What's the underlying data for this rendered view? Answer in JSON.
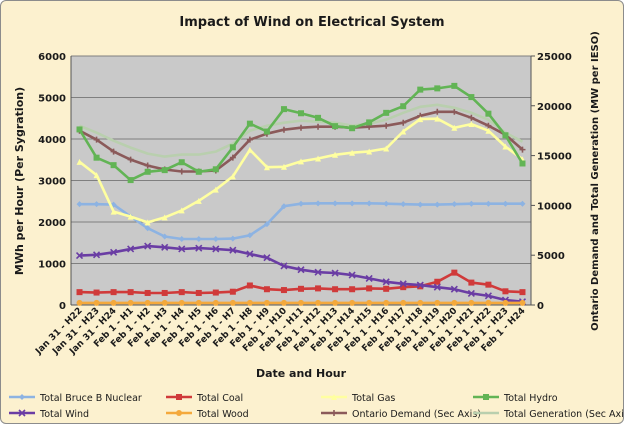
{
  "chart_data": {
    "type": "line",
    "title": "Impact of Wind on Electrical System",
    "xlabel": "Date and Hour",
    "ylabel": "MWh per Hour (Per Sygration)",
    "y2label": "Ontario Demand and Total Generation (MW per IESO)",
    "ylim": [
      0,
      6000
    ],
    "y2lim": [
      0,
      25000
    ],
    "yticks": [
      "0",
      "1000",
      "2000",
      "3000",
      "4000",
      "5000",
      "6000"
    ],
    "y2ticks": [
      "0",
      "5000",
      "10000",
      "15000",
      "20000",
      "25000"
    ],
    "grid": true,
    "legend_position": "bottom",
    "x_ticks": [
      "Jan 31 - H22",
      "Jan 31 - H23",
      "Jan 31 - H24",
      "Feb 1 - H1",
      "Feb 1 - H2",
      "Feb 1 - H3",
      "Feb 1 - H4",
      "Feb 1 - H5",
      "Feb 1 - H6",
      "Feb 1 - H7",
      "Feb 1 - H8",
      "Feb 1 - H9",
      "Feb 1 - H10",
      "Feb 1 - H11",
      "Feb 1 - H12",
      "Feb 1 - H13",
      "Feb 1 - H14",
      "Feb 1 - H15",
      "Feb 1 - H16",
      "Feb 1 - H17",
      "Feb 1 - H18",
      "Feb 1 - H19",
      "Feb 1 - H20",
      "Feb 1 - H21",
      "Feb 1 - H22",
      "Feb 1 - H23",
      "Feb 1 - H24"
    ],
    "series": [
      {
        "name": "Total Bruce B Nuclear",
        "color": "#8db3e2",
        "marker": "diamond",
        "axis": "primary",
        "values": [
          2430,
          2430,
          2420,
          2130,
          1850,
          1650,
          1590,
          1590,
          1590,
          1600,
          1680,
          1950,
          2380,
          2440,
          2450,
          2450,
          2450,
          2450,
          2440,
          2430,
          2420,
          2420,
          2430,
          2440,
          2440,
          2440,
          2440
        ]
      },
      {
        "name": "Total Coal",
        "color": "#d03a3a",
        "marker": "square",
        "axis": "primary",
        "values": [
          310,
          300,
          310,
          310,
          290,
          290,
          310,
          290,
          300,
          320,
          470,
          380,
          360,
          390,
          400,
          380,
          380,
          400,
          390,
          430,
          450,
          560,
          780,
          540,
          490,
          330,
          310
        ]
      },
      {
        "name": "Total Gas",
        "color": "#ffffa0",
        "marker": "triangle",
        "axis": "primary",
        "values": [
          3450,
          3130,
          2250,
          2130,
          1990,
          2110,
          2280,
          2510,
          2780,
          3100,
          3740,
          3320,
          3330,
          3460,
          3530,
          3620,
          3670,
          3700,
          3770,
          4180,
          4480,
          4490,
          4270,
          4360,
          4200,
          3820,
          3510
        ]
      },
      {
        "name": "Total Hydro",
        "color": "#62b455",
        "marker": "square",
        "axis": "primary",
        "values": [
          4230,
          3550,
          3370,
          3010,
          3210,
          3250,
          3440,
          3210,
          3270,
          3800,
          4370,
          4180,
          4720,
          4620,
          4510,
          4310,
          4260,
          4400,
          4630,
          4790,
          5190,
          5220,
          5280,
          5010,
          4610,
          4090,
          3410
        ]
      },
      {
        "name": "Total Wind",
        "color": "#6a3da4",
        "marker": "x",
        "axis": "primary",
        "values": [
          1190,
          1210,
          1270,
          1350,
          1420,
          1390,
          1350,
          1370,
          1350,
          1320,
          1230,
          1140,
          940,
          850,
          790,
          770,
          720,
          640,
          560,
          510,
          480,
          430,
          380,
          280,
          220,
          120,
          80
        ]
      },
      {
        "name": "Total Wood",
        "color": "#f4a93c",
        "marker": "circle",
        "axis": "primary",
        "values": [
          50,
          50,
          50,
          50,
          50,
          50,
          50,
          50,
          50,
          50,
          50,
          50,
          50,
          50,
          50,
          50,
          50,
          50,
          50,
          50,
          50,
          50,
          50,
          50,
          50,
          50,
          50
        ]
      },
      {
        "name": "Ontario Demand (Sec Axis)",
        "color": "#8b5a5a",
        "marker": "plus",
        "axis": "secondary",
        "values": [
          17500,
          16600,
          15400,
          14600,
          14000,
          13600,
          13400,
          13400,
          13500,
          14800,
          16600,
          17200,
          17600,
          17800,
          17900,
          17900,
          17800,
          17900,
          18000,
          18300,
          19000,
          19400,
          19400,
          18800,
          18000,
          17100,
          15600
        ]
      },
      {
        "name": "Total Generation (Sec Axis)",
        "color": "#b9cfae",
        "marker": "none",
        "axis": "secondary",
        "values": [
          18000,
          17300,
          16500,
          15800,
          15200,
          14900,
          15100,
          15100,
          15400,
          16200,
          17500,
          18000,
          18300,
          18500,
          18400,
          18300,
          18000,
          18200,
          18600,
          19300,
          19900,
          20100,
          19800,
          19300,
          18600,
          17300,
          16400
        ]
      }
    ]
  }
}
